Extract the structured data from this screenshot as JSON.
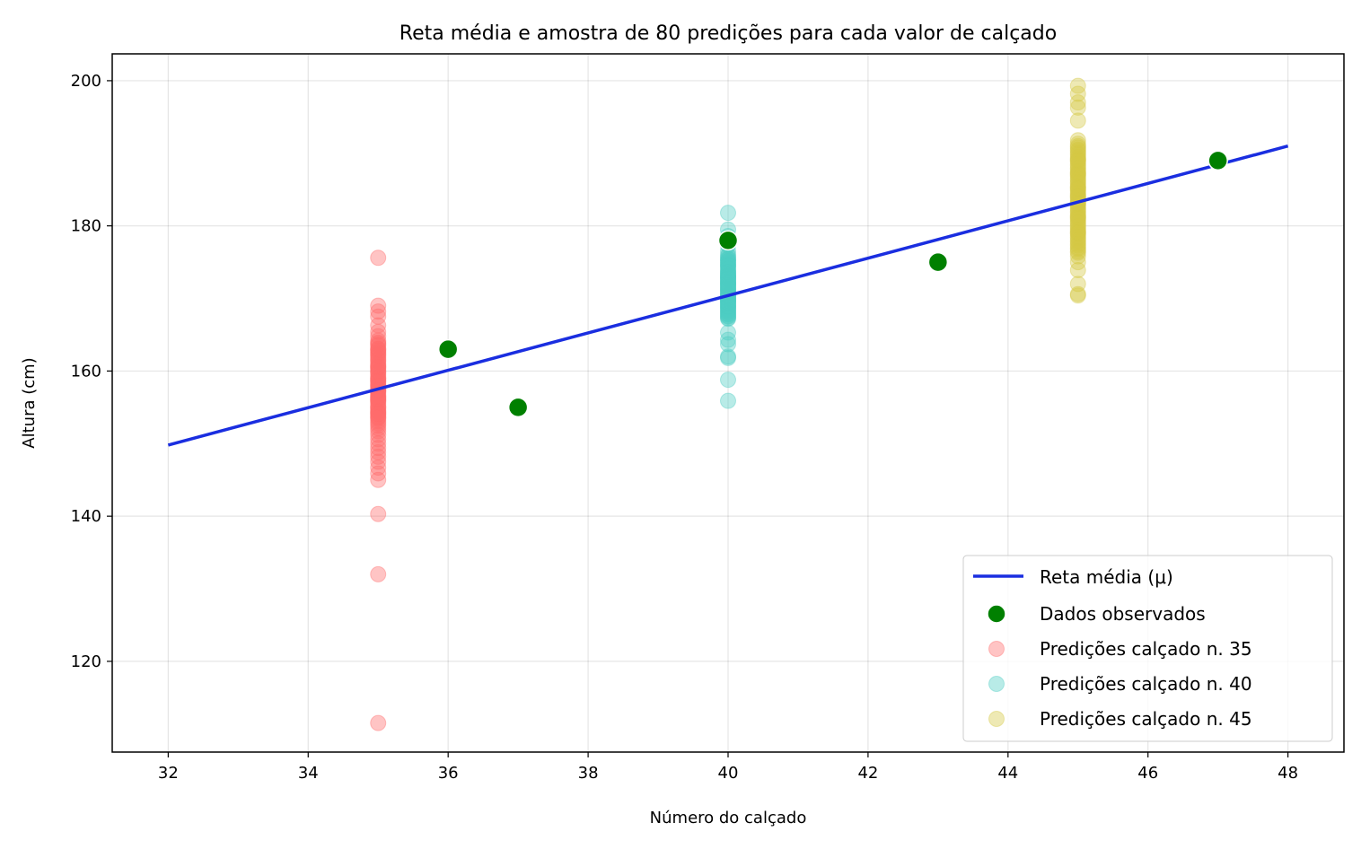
{
  "chart_data": {
    "type": "scatter",
    "title": "Reta média e amostra de 80 predições para cada valor de calçado",
    "xlabel": "Número do calçado",
    "ylabel": "Altura (cm)",
    "xlim": [
      31.2,
      48.8
    ],
    "ylim": [
      107.5,
      203.7
    ],
    "xticks": [
      32,
      34,
      36,
      38,
      40,
      42,
      44,
      46,
      48
    ],
    "yticks": [
      120,
      140,
      160,
      180,
      200
    ],
    "grid": true,
    "legend_position": "bottom-right",
    "mean_line": {
      "name": "Reta média (μ)",
      "color": "#1a2ee0",
      "x": [
        32,
        48
      ],
      "y": [
        149.8,
        191.0
      ]
    },
    "observed": {
      "name": "Dados observados",
      "color": "#008000",
      "x": [
        36,
        37,
        40,
        43,
        47
      ],
      "y": [
        163,
        155,
        178,
        175,
        189
      ]
    },
    "predictions": [
      {
        "name": "Predições calçado n. 35",
        "x": 35,
        "color": "#ff6b6b",
        "values": [
          175.6,
          169.0,
          168.2,
          167.5,
          166.3,
          165.4,
          164.8,
          164.2,
          163.9,
          163.5,
          163.1,
          162.8,
          162.4,
          162.0,
          161.7,
          161.3,
          161.0,
          160.6,
          160.3,
          160.0,
          159.7,
          159.4,
          159.1,
          158.8,
          158.5,
          158.2,
          157.9,
          157.6,
          157.3,
          157.0,
          156.7,
          156.4,
          156.1,
          155.8,
          155.5,
          155.2,
          154.9,
          154.6,
          154.3,
          154.0,
          153.7,
          153.4,
          153.1,
          152.8,
          152.5,
          152.1,
          151.7,
          151.2,
          150.6,
          150.0,
          149.4,
          148.8,
          148.2,
          147.5,
          146.7,
          145.9,
          145.0,
          140.3,
          132.0,
          111.5,
          163.7,
          162.6,
          161.5,
          160.8,
          159.9,
          159.0,
          158.0,
          157.2,
          156.5,
          155.9,
          155.0,
          154.4,
          153.6,
          162.2,
          160.5,
          158.6,
          157.4,
          156.2,
          154.1,
          163.0
        ]
      },
      {
        "name": "Predições calçado n. 40",
        "x": 40,
        "color": "#4ecdc4",
        "values": [
          181.8,
          179.5,
          178.6,
          177.3,
          176.5,
          176.0,
          175.5,
          175.1,
          174.7,
          174.3,
          173.9,
          173.5,
          173.2,
          172.9,
          172.6,
          172.3,
          172.0,
          171.7,
          171.4,
          171.1,
          170.8,
          170.5,
          170.2,
          169.9,
          169.6,
          169.3,
          169.0,
          168.7,
          168.4,
          168.1,
          167.8,
          167.5,
          167.2,
          165.3,
          164.3,
          163.7,
          162.0,
          161.8,
          158.8,
          155.9,
          175.8,
          175.2,
          174.9,
          174.5,
          174.1,
          173.7,
          173.3,
          173.0,
          172.7,
          172.4,
          172.1,
          171.8,
          171.5,
          171.2,
          170.9,
          170.6,
          170.3,
          170.0,
          169.7,
          169.4,
          169.1,
          168.8,
          168.5,
          168.2,
          167.9,
          167.6,
          172.2,
          171.3,
          170.4,
          169.5,
          173.6,
          174.6,
          175.4,
          168.9,
          170.1,
          171.9,
          172.8,
          169.8,
          173.1,
          167.3
        ]
      },
      {
        "name": "Predições calçado n. 45",
        "x": 45,
        "color": "#d4c843",
        "values": [
          199.3,
          198.2,
          197.0,
          196.3,
          194.5,
          191.8,
          191.3,
          190.8,
          190.3,
          189.8,
          189.3,
          188.8,
          188.3,
          187.8,
          187.3,
          186.8,
          186.3,
          185.8,
          185.3,
          184.8,
          184.3,
          183.8,
          183.3,
          182.8,
          182.3,
          181.8,
          181.3,
          180.8,
          180.3,
          179.8,
          179.3,
          178.8,
          178.3,
          177.8,
          177.3,
          176.8,
          176.3,
          175.8,
          175.0,
          173.9,
          172.0,
          170.6,
          170.4,
          191.0,
          190.5,
          190.0,
          189.5,
          189.0,
          188.5,
          188.0,
          187.5,
          187.0,
          186.5,
          186.0,
          185.5,
          185.0,
          184.5,
          184.0,
          183.5,
          183.0,
          182.5,
          182.0,
          181.5,
          181.0,
          180.5,
          180.0,
          179.5,
          179.0,
          178.5,
          178.0,
          177.5,
          177.0,
          176.5,
          185.2,
          183.1,
          181.2,
          179.1,
          187.2,
          189.1,
          184.1
        ]
      }
    ]
  }
}
